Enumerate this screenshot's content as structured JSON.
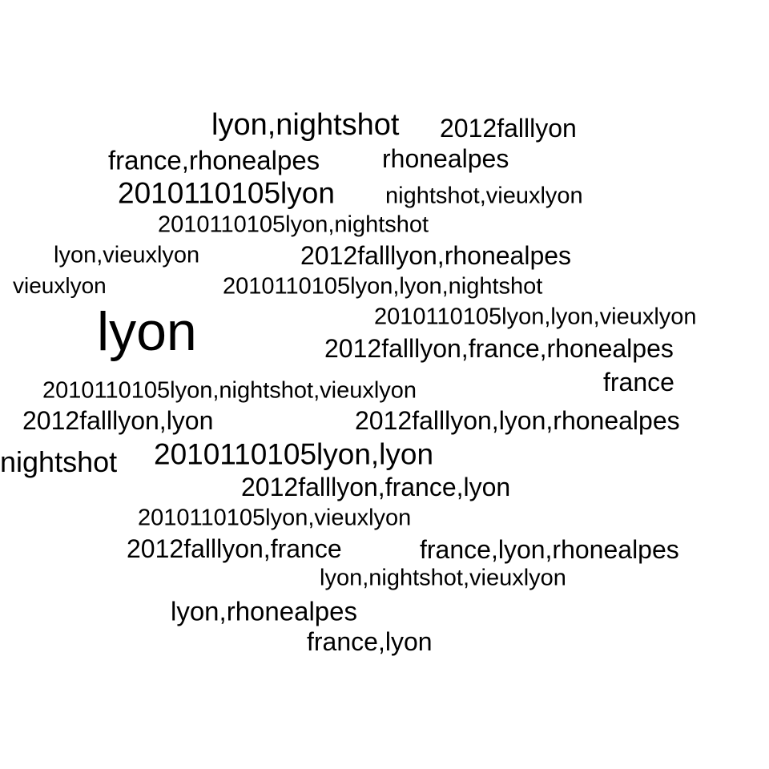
{
  "words": [
    "lyon,nightshot",
    "2012falllyon",
    "france,rhonealpes",
    "rhonealpes",
    "2010110105lyon",
    "nightshot,vieuxlyon",
    "2010110105lyon,nightshot",
    "lyon,vieuxlyon",
    "2012falllyon,rhonealpes",
    "vieuxlyon",
    "2010110105lyon,lyon,nightshot",
    "2010110105lyon,lyon,vieuxlyon",
    "lyon",
    "2012falllyon,france,rhonealpes",
    "france",
    "2010110105lyon,nightshot,vieuxlyon",
    "2012falllyon,lyon",
    "2012falllyon,lyon,rhonealpes",
    "nightshot",
    "2010110105lyon,lyon",
    "2012falllyon,france,lyon",
    "2010110105lyon,vieuxlyon",
    "2012falllyon,france",
    "france,lyon,rhonealpes",
    "lyon,nightshot,vieuxlyon",
    "lyon,rhonealpes",
    "france,lyon"
  ]
}
